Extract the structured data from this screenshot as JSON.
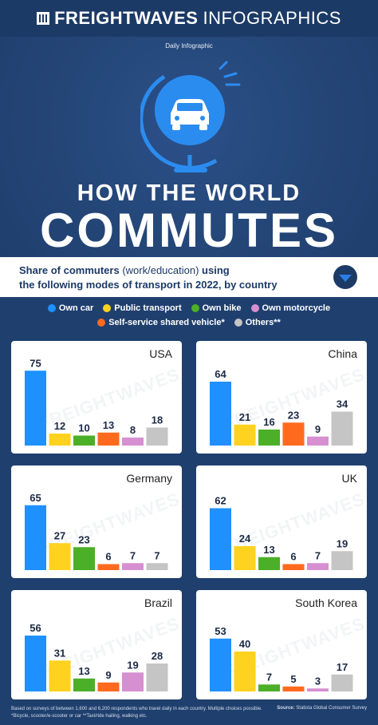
{
  "header": {
    "brand": "FREIGHTWAVES",
    "brand_sub": "INFOGRAPHICS"
  },
  "hero": {
    "kicker": "Daily Infographic",
    "title_line1": "HOW THE WORLD",
    "title_line2": "COMMUTES"
  },
  "subtitle": {
    "part1": "Share of commuters ",
    "part2": "(work/education)",
    "part3": " using",
    "line2": "the following modes of transport in 2022, by country"
  },
  "legend": [
    {
      "label": "Own car",
      "color": "#1e90ff"
    },
    {
      "label": "Public transport",
      "color": "#ffd21f"
    },
    {
      "label": "Own bike",
      "color": "#4caf28"
    },
    {
      "label": "Own motorcycle",
      "color": "#d68fd0"
    },
    {
      "label": "Self-service shared vehicle*",
      "color": "#ff6a1f"
    },
    {
      "label": "Others**",
      "color": "#c5c5c5"
    }
  ],
  "chart_data": [
    {
      "type": "bar",
      "title": "USA",
      "categories": [
        "Own car",
        "Public transport",
        "Own bike",
        "Self-service shared vehicle",
        "Own motorcycle",
        "Others"
      ],
      "values": [
        75,
        12,
        10,
        13,
        8,
        18
      ],
      "ylim": [
        0,
        80
      ]
    },
    {
      "type": "bar",
      "title": "China",
      "categories": [
        "Own car",
        "Public transport",
        "Own bike",
        "Self-service shared vehicle",
        "Own motorcycle",
        "Others"
      ],
      "values": [
        64,
        21,
        16,
        23,
        9,
        34
      ],
      "ylim": [
        0,
        80
      ]
    },
    {
      "type": "bar",
      "title": "Germany",
      "categories": [
        "Own car",
        "Public transport",
        "Own bike",
        "Self-service shared vehicle",
        "Own motorcycle",
        "Others"
      ],
      "values": [
        65,
        27,
        23,
        6,
        7,
        7
      ],
      "ylim": [
        0,
        80
      ]
    },
    {
      "type": "bar",
      "title": "UK",
      "categories": [
        "Own car",
        "Public transport",
        "Own bike",
        "Self-service shared vehicle",
        "Own motorcycle",
        "Others"
      ],
      "values": [
        62,
        24,
        13,
        6,
        7,
        19
      ],
      "ylim": [
        0,
        80
      ]
    },
    {
      "type": "bar",
      "title": "Brazil",
      "categories": [
        "Own car",
        "Public transport",
        "Own bike",
        "Self-service shared vehicle",
        "Own motorcycle",
        "Others"
      ],
      "values": [
        56,
        31,
        13,
        9,
        19,
        28
      ],
      "ylim": [
        0,
        80
      ]
    },
    {
      "type": "bar",
      "title": "South Korea",
      "categories": [
        "Own car",
        "Public transport",
        "Own bike",
        "Self-service shared vehicle",
        "Own motorcycle",
        "Others"
      ],
      "values": [
        53,
        40,
        7,
        5,
        3,
        17
      ],
      "ylim": [
        0,
        80
      ]
    }
  ],
  "bar_colors": [
    "#1e90ff",
    "#ffd21f",
    "#4caf28",
    "#ff6a1f",
    "#d68fd0",
    "#c5c5c5"
  ],
  "footer": {
    "note1": "Based on surveys of between 1,600 and 6,200 respondents who travel daily in each country. Multiple choices possible.",
    "note2": "*Bicycle, scooter/e-scooter or car  **Taxi/ride hailing, walking etc.",
    "source_label": "Source:",
    "source": " Statista Global Consumer Survey"
  }
}
